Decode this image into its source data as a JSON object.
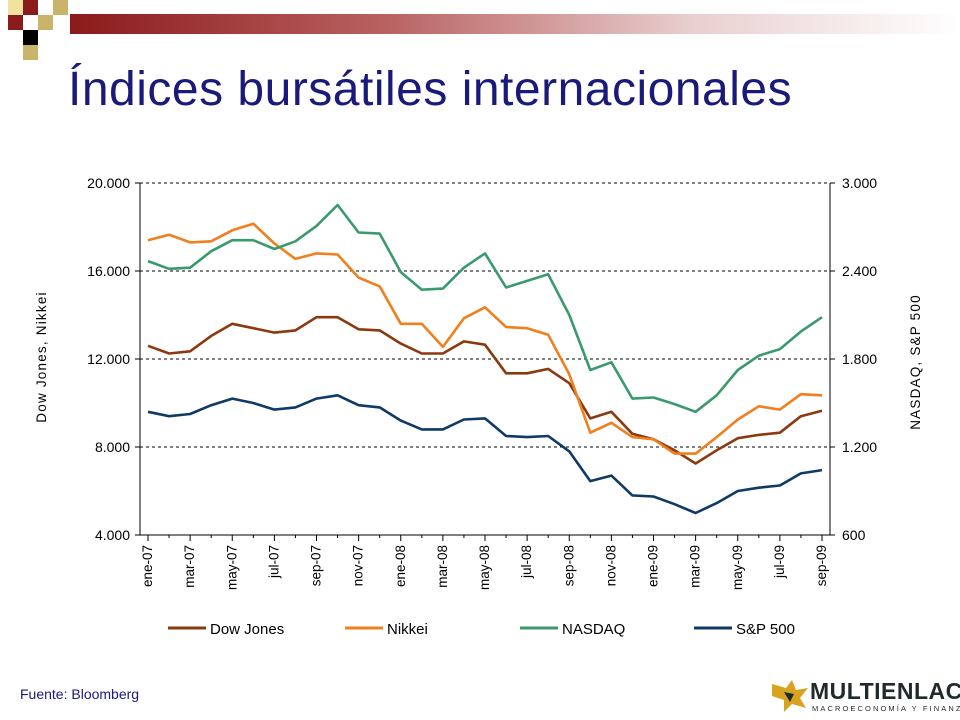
{
  "slide": {
    "title": "Índices bursátiles internacionales",
    "source": "Fuente: Bloomberg",
    "logo_text": "MULTIENLACE",
    "logo_subtext": "MACROECONOMÍA Y FINANZAS"
  },
  "colors": {
    "title": "#1a1a7a",
    "dow_jones": "#8b3a0f",
    "nikkei": "#f07f1e",
    "nasdaq": "#3a9a6e",
    "sp500": "#103a66"
  },
  "chart_data": {
    "type": "line",
    "title": "",
    "ylabel_left": "Dow Jones, Nikkei",
    "ylabel_right": "NASDAQ, S&P 500",
    "ylim_left": [
      4000,
      20000
    ],
    "ylim_right": [
      600,
      3000
    ],
    "yticks_left": [
      "4.000",
      "8.000",
      "12.000",
      "16.000",
      "20.000"
    ],
    "yticks_left_values": [
      4000,
      8000,
      12000,
      16000,
      20000
    ],
    "yticks_right": [
      "600",
      "1.200",
      "1.800",
      "2.400",
      "3.000"
    ],
    "yticks_right_values": [
      600,
      1200,
      1800,
      2400,
      3000
    ],
    "grid": "horizontal dashed",
    "legend": "bottom",
    "months": [
      "ene-07",
      "feb-07",
      "mar-07",
      "abr-07",
      "may-07",
      "jun-07",
      "jul-07",
      "ago-07",
      "sep-07",
      "oct-07",
      "nov-07",
      "dic-07",
      "ene-08",
      "feb-08",
      "mar-08",
      "abr-08",
      "may-08",
      "jun-08",
      "jul-08",
      "ago-08",
      "sep-08",
      "oct-08",
      "nov-08",
      "dic-08",
      "ene-09",
      "feb-09",
      "mar-09",
      "abr-09",
      "may-09",
      "jun-09",
      "jul-09",
      "ago-09",
      "sep-09"
    ],
    "xtick_labels": [
      "ene-07",
      "mar-07",
      "may-07",
      "jul-07",
      "sep-07",
      "nov-07",
      "ene-08",
      "mar-08",
      "may-08",
      "jul-08",
      "sep-08",
      "nov-08",
      "ene-09",
      "mar-09",
      "may-09",
      "jul-09",
      "sep-09"
    ],
    "series": [
      {
        "name": "Dow Jones",
        "axis": "left",
        "color_key": "dow_jones",
        "values": [
          12600,
          12250,
          12350,
          13050,
          13600,
          13400,
          13200,
          13300,
          13900,
          13900,
          13350,
          13300,
          12700,
          12250,
          12250,
          12800,
          12650,
          11350,
          11350,
          11550,
          10900,
          9300,
          9600,
          8600,
          8350,
          7850,
          7250,
          7850,
          8400,
          8550,
          8650,
          9400,
          9650
        ]
      },
      {
        "name": "Nikkei",
        "axis": "left",
        "color_key": "nikkei",
        "values": [
          17400,
          17650,
          17300,
          17350,
          17850,
          18150,
          17250,
          16550,
          16800,
          16750,
          15700,
          15300,
          13600,
          13600,
          12550,
          13850,
          14350,
          13450,
          13400,
          13100,
          11300,
          8650,
          9100,
          8450,
          8350,
          7700,
          7700,
          8450,
          9250,
          9850,
          9700,
          10400,
          10350
        ]
      },
      {
        "name": "NASDAQ",
        "axis": "left",
        "color_key": "nasdaq",
        "values": [
          16450,
          16100,
          16150,
          16900,
          17400,
          17400,
          17000,
          17350,
          18050,
          19000,
          17750,
          17700,
          15950,
          15150,
          15200,
          16150,
          16800,
          15250,
          15550,
          15850,
          14000,
          11500,
          11850,
          10200,
          10250,
          9950,
          9600,
          10350,
          11500,
          12150,
          12450,
          13250,
          13900
        ]
      },
      {
        "name": "S&P 500",
        "axis": "left",
        "color_key": "sp500",
        "values": [
          9600,
          9400,
          9500,
          9900,
          10200,
          10000,
          9700,
          9800,
          10200,
          10350,
          9900,
          9800,
          9200,
          8800,
          8800,
          9250,
          9300,
          8500,
          8450,
          8500,
          7800,
          6450,
          6700,
          5800,
          5750,
          5400,
          5000,
          5450,
          6000,
          6150,
          6250,
          6800,
          6950
        ]
      }
    ]
  }
}
